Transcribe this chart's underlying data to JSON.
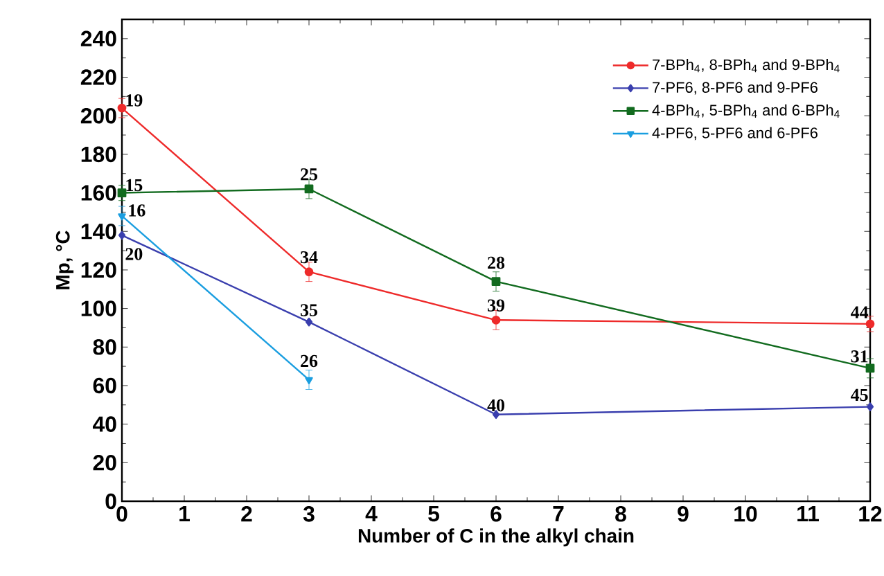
{
  "chart_data": {
    "type": "line",
    "xlabel": "Number of C in the alkyl chain",
    "ylabel": "Mp, °C",
    "xlim": [
      0,
      12
    ],
    "xticks": [
      0,
      1,
      2,
      3,
      4,
      5,
      6,
      7,
      8,
      9,
      10,
      11,
      12
    ],
    "ylim": [
      0,
      250
    ],
    "yticks": [
      0,
      20,
      40,
      60,
      80,
      100,
      120,
      140,
      160,
      180,
      200,
      220,
      240
    ],
    "grid": false,
    "legend": "top right",
    "series": [
      {
        "name": "7-BPh$_{4}$, 8-BPh$_{4}$ and 9-BPh$_{4}$",
        "color": "#ee2a2a",
        "marker": "circle",
        "x": [
          0,
          3,
          6,
          12
        ],
        "values": [
          204,
          119,
          94,
          92
        ],
        "errors": [
          5,
          5,
          5,
          4
        ]
      },
      {
        "name": "7-PF6, 8-PF6 and 9-PF6",
        "color": "#3a3fae",
        "marker": "diamond",
        "x": [
          0,
          3,
          6,
          12
        ],
        "values": [
          138,
          93,
          45,
          49
        ]
      },
      {
        "name": "4-BPh$_{4}$, 5-BPh$_{4}$ and 6-BPh$_{4}$",
        "color": "#126b1f",
        "marker": "square",
        "x": [
          0,
          3,
          6,
          12
        ],
        "values": [
          160,
          162,
          114,
          69
        ],
        "errors": [
          4,
          5,
          5,
          5
        ]
      },
      {
        "name": "4-PF6, 5-PF6 and 6-PF6",
        "color": "#1a9ee0",
        "marker": "triangle",
        "x": [
          0,
          3
        ],
        "values": [
          148,
          63
        ],
        "errors": [
          5,
          5
        ]
      }
    ],
    "annotations": [
      {
        "text": "19",
        "x": 0,
        "y": 204
      },
      {
        "text": "15",
        "x": 0,
        "y": 160
      },
      {
        "text": "16",
        "x": 0,
        "y": 148
      },
      {
        "text": "20",
        "x": 0,
        "y": 138
      },
      {
        "text": "34",
        "x": 3,
        "y": 119
      },
      {
        "text": "35",
        "x": 3,
        "y": 93
      },
      {
        "text": "25",
        "x": 3,
        "y": 162
      },
      {
        "text": "26",
        "x": 3,
        "y": 63
      },
      {
        "text": "39",
        "x": 6,
        "y": 94
      },
      {
        "text": "40",
        "x": 6,
        "y": 45
      },
      {
        "text": "28",
        "x": 6,
        "y": 114
      },
      {
        "text": "44",
        "x": 12,
        "y": 92
      },
      {
        "text": "45",
        "x": 12,
        "y": 49
      },
      {
        "text": "31",
        "x": 12,
        "y": 69
      }
    ]
  }
}
